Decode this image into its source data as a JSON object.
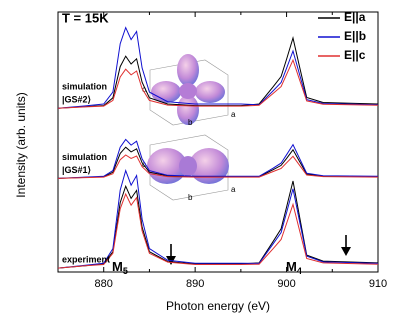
{
  "chart_data": {
    "type": "line",
    "title": "T = 15K",
    "xlabel": "Photon energy (eV)",
    "ylabel": "Intensity (arb. units)",
    "xlim": [
      875,
      910
    ],
    "xticks": [
      880,
      890,
      900,
      910
    ],
    "xminorticks": [
      875,
      885,
      895,
      905
    ],
    "ylim": [
      0,
      10
    ],
    "x": [
      875,
      878,
      880,
      881,
      881.8,
      882.4,
      883,
      883.6,
      884.2,
      885,
      887,
      890,
      895,
      897,
      898.5,
      899.4,
      900,
      900.7,
      901.4,
      902.2,
      904,
      910
    ],
    "groups": [
      {
        "label": [
          "simulation",
          "|GS#2⟩"
        ],
        "series": [
          {
            "name": "E||a",
            "color": "#000000",
            "values": [
              6.3,
              6.36,
              6.4,
              6.7,
              7.9,
              8.3,
              8.0,
              8.2,
              7.3,
              6.7,
              6.46,
              6.4,
              6.4,
              6.46,
              7.11,
              7.52,
              8.19,
              9.0,
              7.92,
              6.71,
              6.52,
              6.46
            ]
          },
          {
            "name": "E||b",
            "color": "#1010d0",
            "values": [
              6.3,
              6.39,
              6.46,
              6.92,
              8.78,
              9.4,
              8.94,
              9.25,
              7.85,
              6.92,
              6.55,
              6.46,
              6.46,
              6.43,
              6.96,
              7.29,
              7.84,
              8.5,
              7.62,
              6.63,
              6.48,
              6.43
            ]
          },
          {
            "name": "E||c",
            "color": "#e03030",
            "values": [
              6.3,
              6.35,
              6.38,
              6.6,
              7.5,
              7.8,
              7.58,
              7.73,
              7.05,
              6.6,
              6.42,
              6.38,
              6.38,
              6.41,
              6.86,
              7.13,
              7.6,
              8.15,
              7.41,
              6.58,
              6.45,
              6.41
            ]
          }
        ]
      },
      {
        "label": [
          "simulation",
          "|GS#1⟩"
        ],
        "series": [
          {
            "name": "E||a",
            "color": "#000000",
            "values": [
              3.6,
              3.64,
              3.66,
              3.84,
              4.56,
              4.8,
              4.62,
              4.74,
              4.2,
              3.84,
              3.7,
              3.66,
              3.66,
              3.67,
              3.93,
              4.1,
              4.37,
              4.7,
              4.26,
              3.77,
              3.69,
              3.67
            ]
          },
          {
            "name": "E||b",
            "color": "#1010d0",
            "values": [
              3.6,
              3.65,
              3.68,
              3.9,
              4.8,
              5.1,
              4.88,
              5.03,
              4.35,
              3.9,
              3.72,
              3.68,
              3.68,
              3.68,
              3.99,
              4.19,
              4.51,
              4.9,
              4.38,
              3.8,
              3.7,
              3.68
            ]
          },
          {
            "name": "E||c",
            "color": "#e03030",
            "values": [
              3.6,
              3.63,
              3.65,
              3.78,
              4.32,
              4.5,
              4.37,
              4.46,
              4.05,
              3.78,
              3.67,
              3.65,
              3.65,
              3.65,
              3.86,
              3.98,
              4.2,
              4.45,
              4.11,
              3.73,
              3.67,
              3.65
            ]
          }
        ]
      },
      {
        "label": [
          "experiment"
        ],
        "series": [
          {
            "name": "E||a",
            "color": "#000000",
            "values": [
              0.15,
              0.24,
              0.31,
              0.78,
              2.67,
              3.3,
              2.83,
              3.14,
              1.73,
              0.78,
              0.4,
              0.31,
              0.31,
              0.35,
              1.16,
              1.66,
              2.5,
              3.5,
              2.16,
              0.65,
              0.42,
              0.35
            ]
          },
          {
            "name": "E||b",
            "color": "#1010d0",
            "values": [
              0.15,
              0.26,
              0.34,
              0.9,
              3.15,
              3.9,
              3.34,
              3.71,
              2.03,
              0.9,
              0.45,
              0.34,
              0.34,
              0.33,
              1.07,
              1.52,
              2.29,
              3.2,
              1.98,
              0.61,
              0.39,
              0.33
            ]
          },
          {
            "name": "E||c",
            "color": "#e03030",
            "values": [
              0.15,
              0.24,
              0.29,
              0.72,
              2.43,
              3.0,
              2.57,
              2.86,
              1.58,
              0.72,
              0.38,
              0.29,
              0.29,
              0.3,
              0.89,
              1.25,
              1.87,
              2.6,
              1.62,
              0.52,
              0.35,
              0.3
            ]
          }
        ]
      }
    ],
    "edges": [
      {
        "text": "M",
        "sub": "5"
      },
      {
        "text": "M",
        "sub": "4"
      }
    ],
    "inset_axis_labels": [
      "c",
      "b",
      "a"
    ]
  }
}
